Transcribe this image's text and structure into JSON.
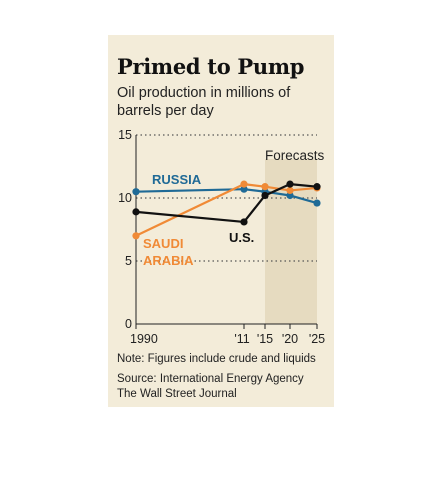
{
  "header": {
    "title": "Primed to Pump",
    "subtitle": "Oil production in millions of barrels per day"
  },
  "footer": {
    "note": "Note: Figures include crude and liquids",
    "source_line1": "Source: International Energy Agency",
    "source_line2": "The Wall Street Journal"
  },
  "chart_data": {
    "type": "line",
    "x_tick_labels": [
      "1990",
      "'11",
      "'15",
      "'20",
      "'25"
    ],
    "y_tick_labels": [
      "15",
      "10",
      "5",
      "0"
    ],
    "ylim": [
      0,
      15
    ],
    "y_ticks": [
      0,
      5,
      10,
      15
    ],
    "forecast_label": "Forecasts",
    "forecast_range": [
      2015,
      2025
    ],
    "grid": "dotted horizontal at 5, 10, 15",
    "series": [
      {
        "label_lines": [
          "RUSSIA"
        ],
        "color": "#1f6a96",
        "x": [
          1990,
          2011,
          2015,
          2020,
          2025
        ],
        "y": [
          10.5,
          10.7,
          10.5,
          10.2,
          9.6
        ]
      },
      {
        "label_lines": [
          "SAUDI",
          "ARABIA"
        ],
        "color": "#f08a36",
        "x": [
          1990,
          2011,
          2015,
          2020,
          2025
        ],
        "y": [
          7.0,
          11.1,
          10.9,
          10.6,
          10.8
        ]
      },
      {
        "label_lines": [
          "U.S."
        ],
        "color": "#111111",
        "x": [
          1990,
          2011,
          2015,
          2020,
          2025
        ],
        "y": [
          8.9,
          8.1,
          10.2,
          11.1,
          10.9
        ]
      }
    ]
  }
}
